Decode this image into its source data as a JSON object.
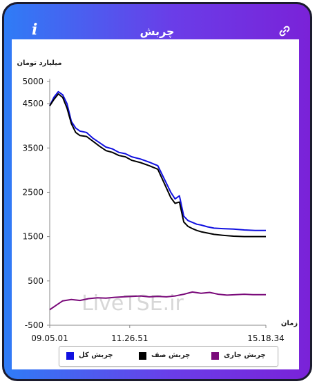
{
  "window": {
    "title": "چربش",
    "info_icon_glyph": "i",
    "info_icon_name": "info-icon",
    "link_icon_name": "link-icon"
  },
  "chart_data": {
    "type": "line",
    "title": "",
    "ylabel": "میلیارد تومان",
    "xlabel": "زمان",
    "ylim": [
      -500,
      5000
    ],
    "yticks": [
      -500,
      500,
      1500,
      2500,
      3500,
      4500,
      5000
    ],
    "ytick_labels": [
      "-500",
      "500",
      "1500",
      "2500",
      "3500",
      "4500",
      "5000"
    ],
    "x_tick_labels": [
      "09.05.01",
      "11.26.51",
      "15.18.34"
    ],
    "x_tick_positions": [
      0,
      0.37,
      1.0
    ],
    "watermark": "LiveTSE.ir",
    "legend_position": "bottom",
    "series": [
      {
        "name": "چربش کل",
        "color": "#1010e0",
        "x": [
          0,
          0.02,
          0.04,
          0.06,
          0.08,
          0.1,
          0.12,
          0.14,
          0.17,
          0.2,
          0.23,
          0.26,
          0.29,
          0.32,
          0.35,
          0.38,
          0.42,
          0.46,
          0.5,
          0.53,
          0.56,
          0.58,
          0.6,
          0.62,
          0.64,
          0.66,
          0.68,
          0.7,
          0.73,
          0.76,
          0.8,
          0.85,
          0.9,
          0.95,
          1.0
        ],
        "values": [
          4450,
          4650,
          4770,
          4700,
          4500,
          4100,
          3950,
          3880,
          3850,
          3720,
          3620,
          3520,
          3480,
          3400,
          3370,
          3300,
          3250,
          3180,
          3100,
          2800,
          2500,
          2350,
          2420,
          1960,
          1860,
          1820,
          1780,
          1760,
          1720,
          1690,
          1680,
          1670,
          1650,
          1640,
          1640
        ]
      },
      {
        "name": "چربش صف",
        "color": "#000000",
        "x": [
          0,
          0.02,
          0.04,
          0.06,
          0.08,
          0.1,
          0.12,
          0.14,
          0.17,
          0.2,
          0.23,
          0.26,
          0.29,
          0.32,
          0.35,
          0.38,
          0.42,
          0.46,
          0.5,
          0.53,
          0.56,
          0.58,
          0.6,
          0.62,
          0.64,
          0.66,
          0.68,
          0.7,
          0.73,
          0.76,
          0.8,
          0.85,
          0.9,
          0.95,
          1.0
        ],
        "values": [
          4450,
          4600,
          4720,
          4640,
          4400,
          4050,
          3850,
          3780,
          3760,
          3650,
          3540,
          3440,
          3400,
          3330,
          3300,
          3220,
          3170,
          3100,
          3020,
          2700,
          2380,
          2250,
          2280,
          1830,
          1730,
          1680,
          1640,
          1610,
          1580,
          1550,
          1530,
          1510,
          1500,
          1500,
          1500
        ]
      },
      {
        "name": "چربش جاری",
        "color": "#7a0a7a",
        "x": [
          0,
          0.03,
          0.06,
          0.1,
          0.14,
          0.18,
          0.22,
          0.26,
          0.3,
          0.34,
          0.38,
          0.42,
          0.46,
          0.5,
          0.54,
          0.58,
          0.62,
          0.66,
          0.7,
          0.74,
          0.78,
          0.82,
          0.86,
          0.9,
          0.94,
          1.0
        ],
        "values": [
          -150,
          -50,
          50,
          80,
          60,
          100,
          120,
          110,
          130,
          140,
          150,
          160,
          140,
          150,
          140,
          160,
          200,
          250,
          220,
          240,
          200,
          180,
          190,
          200,
          190,
          190
        ]
      }
    ]
  }
}
